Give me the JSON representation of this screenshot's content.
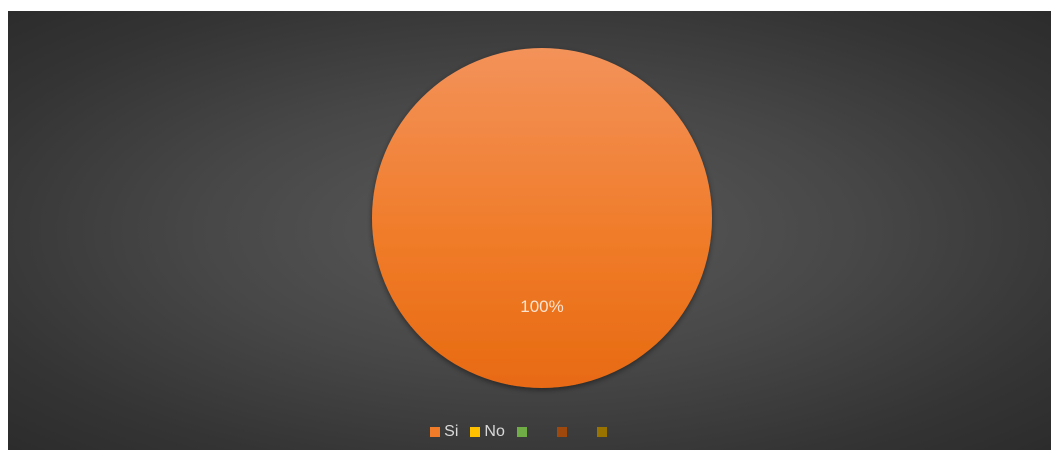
{
  "chart_data": {
    "type": "pie",
    "categories": [
      "Si",
      "No",
      "",
      "",
      ""
    ],
    "values": [
      100,
      0,
      0,
      0,
      0
    ],
    "colors": [
      "#f07c2a",
      "#ffc000",
      "#70ad47",
      "#9e480e",
      "#997300"
    ],
    "data_labels": [
      "100%"
    ],
    "legend_position": "bottom"
  }
}
